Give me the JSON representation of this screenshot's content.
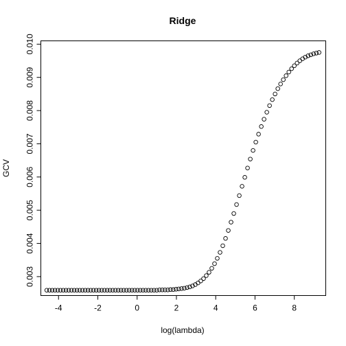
{
  "chart_data": {
    "type": "scatter",
    "title": "Ridge",
    "xlabel": "log(lambda)",
    "ylabel": "GCV",
    "xlim": [
      -4.9,
      9.6
    ],
    "ylim": [
      0.00243,
      0.0101
    ],
    "xticks": [
      -4,
      -2,
      0,
      2,
      4,
      6,
      8
    ],
    "xtick_labels": [
      "-4",
      "-2",
      "0",
      "2",
      "4",
      "6",
      "8"
    ],
    "yticks": [
      0.003,
      0.004,
      0.005,
      0.006,
      0.007,
      0.008,
      0.009,
      0.01
    ],
    "ytick_labels": [
      "0.003",
      "0.004",
      "0.005",
      "0.006",
      "0.007",
      "0.008",
      "0.009",
      "0.010"
    ],
    "marker": "open-circle",
    "grid": false,
    "legend": "none",
    "series": [
      {
        "x": [
          -4.6,
          -4.46,
          -4.32,
          -4.18,
          -4.04,
          -3.9,
          -3.76,
          -3.62,
          -3.48,
          -3.34,
          -3.2,
          -3.06,
          -2.92,
          -2.78,
          -2.64,
          -2.5,
          -2.36,
          -2.22,
          -2.08,
          -1.94,
          -1.8,
          -1.66,
          -1.52,
          -1.38,
          -1.24,
          -1.1,
          -0.96,
          -0.82,
          -0.68,
          -0.54,
          -0.4,
          -0.26,
          -0.12,
          0.02,
          0.16,
          0.3,
          0.44,
          0.58,
          0.72,
          0.86,
          1.0,
          1.14,
          1.28,
          1.42,
          1.56,
          1.7,
          1.84,
          1.98,
          2.12,
          2.26,
          2.4,
          2.54,
          2.68,
          2.82,
          2.96,
          3.1,
          3.24,
          3.38,
          3.52,
          3.66,
          3.8,
          3.94,
          4.08,
          4.22,
          4.36,
          4.5,
          4.64,
          4.78,
          4.92,
          5.06,
          5.2,
          5.34,
          5.48,
          5.62,
          5.76,
          5.9,
          6.04,
          6.18,
          6.32,
          6.46,
          6.6,
          6.74,
          6.88,
          7.02,
          7.16,
          7.3,
          7.44,
          7.58,
          7.72,
          7.86,
          8.0,
          8.14,
          8.28,
          8.42,
          8.56,
          8.7,
          8.84,
          8.98,
          9.12,
          9.26
        ],
        "y": [
          0.00259,
          0.00259,
          0.00259,
          0.00259,
          0.00259,
          0.00259,
          0.00259,
          0.00259,
          0.00259,
          0.00259,
          0.00259,
          0.00259,
          0.00259,
          0.00259,
          0.00259,
          0.00259,
          0.00259,
          0.00259,
          0.00259,
          0.00259,
          0.00259,
          0.00259,
          0.00259,
          0.00259,
          0.00259,
          0.00259,
          0.00259,
          0.00259,
          0.00259,
          0.00259,
          0.00259,
          0.00259,
          0.00259,
          0.00259,
          0.00259,
          0.00259,
          0.00259,
          0.00259,
          0.00259,
          0.00259,
          0.00259,
          0.0026,
          0.0026,
          0.0026,
          0.0026,
          0.00261,
          0.00261,
          0.00262,
          0.00263,
          0.00264,
          0.00265,
          0.00267,
          0.00269,
          0.00272,
          0.00276,
          0.00281,
          0.00287,
          0.00294,
          0.00303,
          0.00313,
          0.00325,
          0.00339,
          0.00355,
          0.00373,
          0.00393,
          0.00415,
          0.00439,
          0.00464,
          0.0049,
          0.00517,
          0.00544,
          0.00572,
          0.00599,
          0.00627,
          0.00654,
          0.0068,
          0.00705,
          0.00729,
          0.00752,
          0.00774,
          0.00795,
          0.00815,
          0.00833,
          0.0085,
          0.00866,
          0.0088,
          0.00893,
          0.00905,
          0.00916,
          0.00926,
          0.00935,
          0.00943,
          0.0095,
          0.00956,
          0.00961,
          0.00965,
          0.00968,
          0.00971,
          0.00973,
          0.00975
        ]
      }
    ]
  }
}
